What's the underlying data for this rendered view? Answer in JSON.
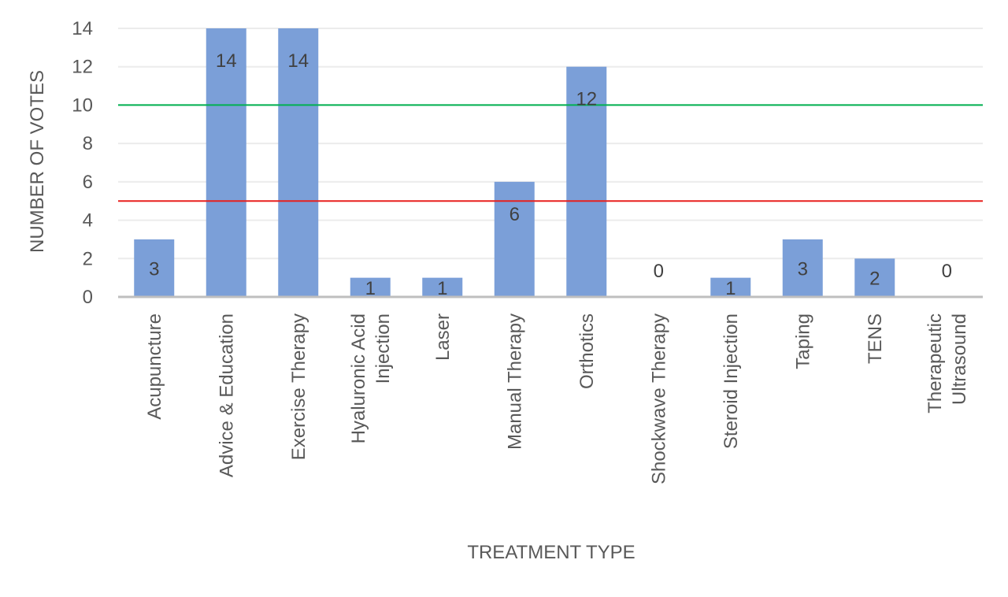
{
  "chart_data": {
    "type": "bar",
    "categories": [
      "Acupuncture",
      "Advice & Education",
      "Exercise Therapy",
      "Hyaluronic Acid Injection",
      "Laser",
      "Manual Therapy",
      "Orthotics",
      "Shockwave Therapy",
      "Steroid Injection",
      "Taping",
      "TENS",
      "Therapeutic Ultrasound"
    ],
    "category_lines": [
      [
        "Acupuncture"
      ],
      [
        "Advice & Education"
      ],
      [
        "Exercise Therapy"
      ],
      [
        "Hyaluronic Acid",
        "Injection"
      ],
      [
        "Laser"
      ],
      [
        "Manual Therapy"
      ],
      [
        "Orthotics"
      ],
      [
        "Shockwave Therapy"
      ],
      [
        "Steroid Injection"
      ],
      [
        "Taping"
      ],
      [
        "TENS"
      ],
      [
        "Therapeutic",
        "Ultrasound"
      ]
    ],
    "values": [
      3,
      14,
      14,
      1,
      1,
      6,
      12,
      0,
      1,
      3,
      2,
      0
    ],
    "title": "",
    "xlabel": "TREATMENT TYPE",
    "ylabel": "NUMBER OF VOTES",
    "ylim": [
      0,
      14
    ],
    "yticks": [
      0,
      2,
      4,
      6,
      8,
      10,
      12,
      14
    ],
    "grid": true,
    "reference_lines": [
      {
        "value": 10,
        "color": "#00b050"
      },
      {
        "value": 5,
        "color": "#e8201e"
      }
    ],
    "colors": {
      "bar": "#7b9fd8",
      "gridline": "#ececec",
      "axis": "#bfbfbf",
      "tick_text": "#595959",
      "data_label": "#404040"
    }
  }
}
